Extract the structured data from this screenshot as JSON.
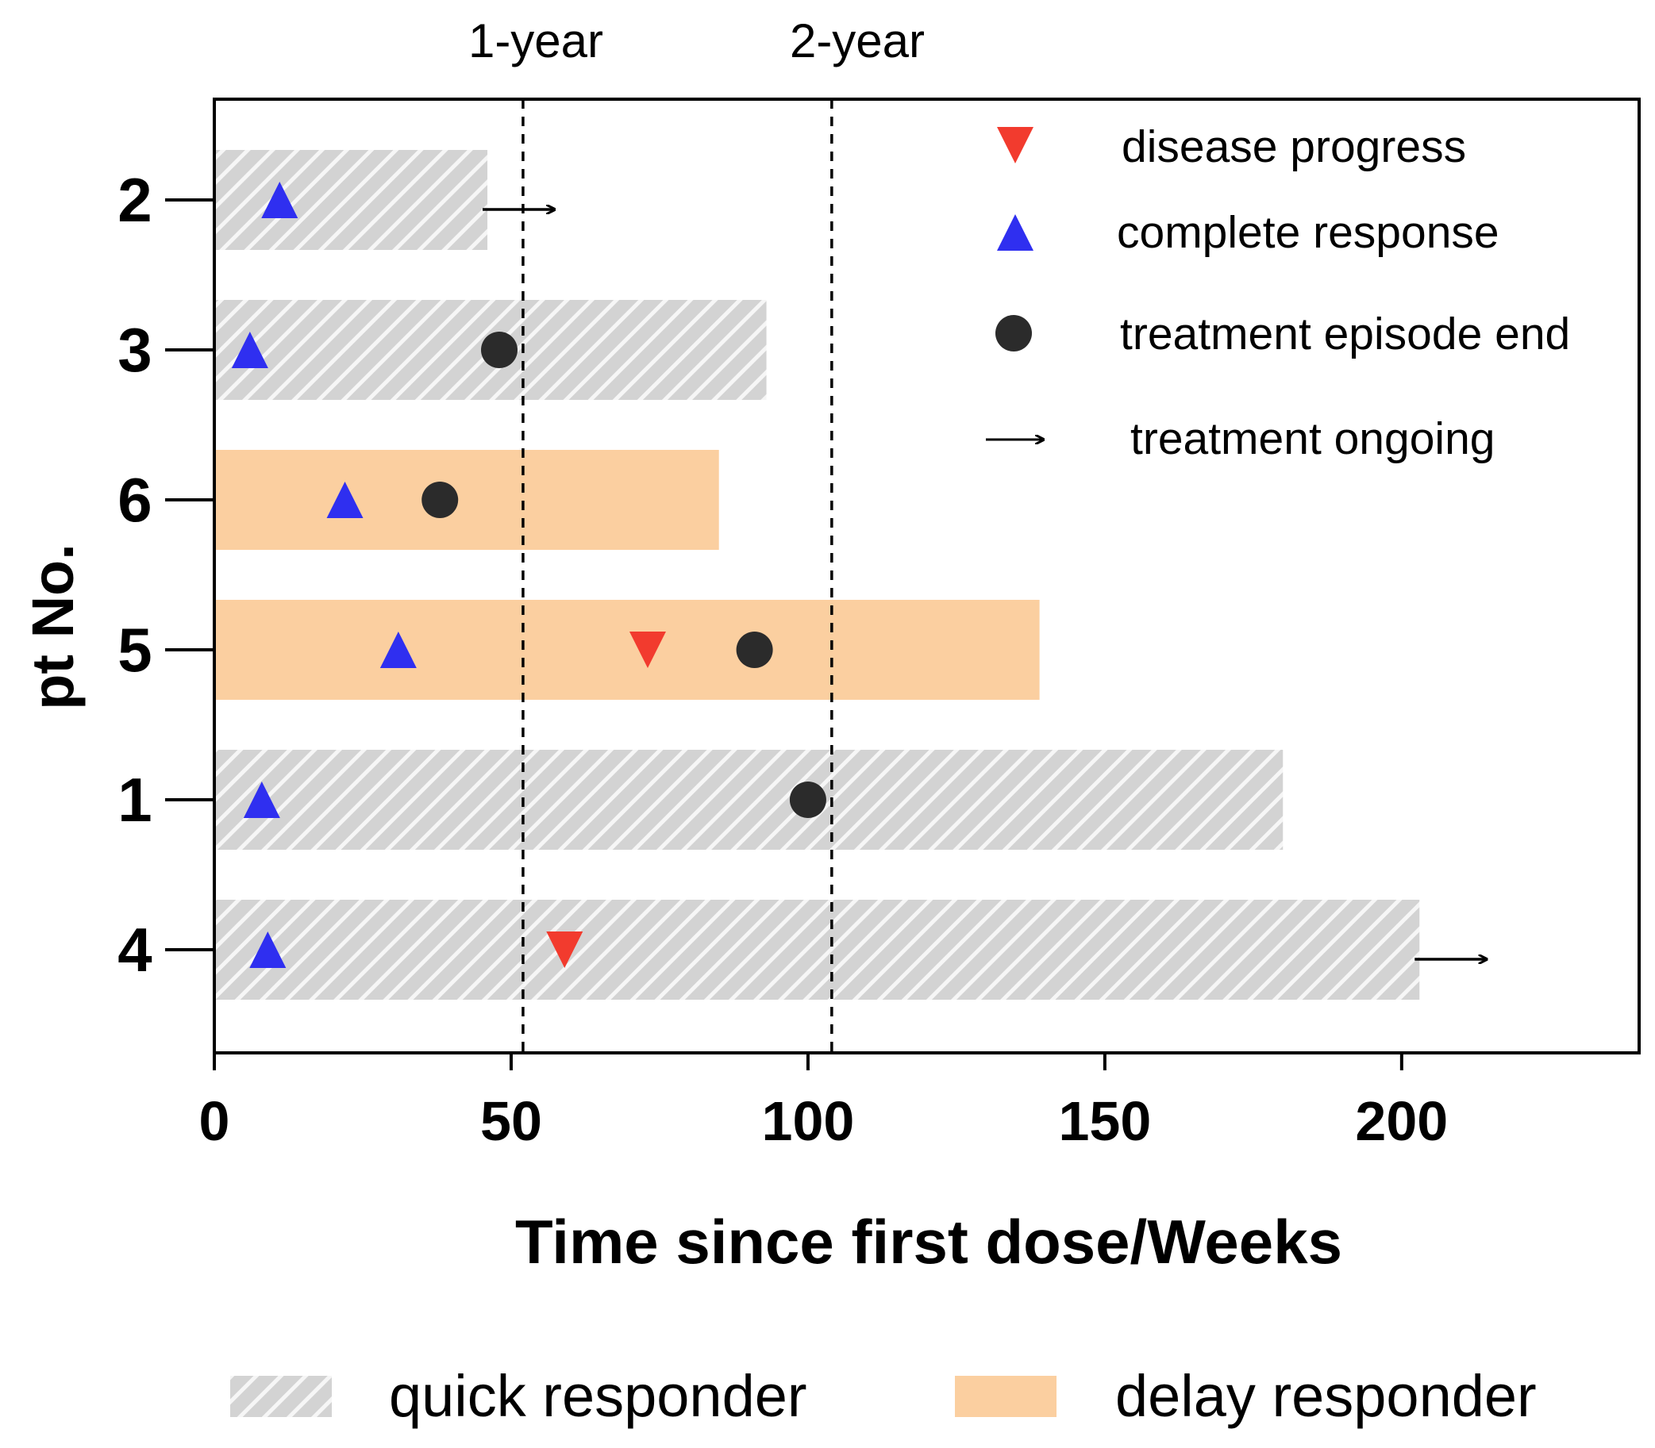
{
  "chart_data": {
    "type": "swimmer",
    "title": "",
    "xlabel": "Time since first dose/Weeks",
    "ylabel": "pt No.",
    "xlim": [
      0,
      240
    ],
    "xticks": [
      0,
      50,
      100,
      150,
      200
    ],
    "xtick_labels": [
      "0",
      "50",
      "100",
      "150",
      "200"
    ],
    "reference_lines": [
      {
        "label": "1-year",
        "x": 52
      },
      {
        "label": "2-year",
        "x": 104
      }
    ],
    "groups": [
      {
        "key": "quick",
        "name": "quick responder",
        "color": "#d3d3d3",
        "pattern": "hatched"
      },
      {
        "key": "delay",
        "name": "delay responder",
        "color": "#fbcfa0",
        "pattern": "solid"
      }
    ],
    "patients": [
      {
        "id": "2",
        "group": "quick",
        "duration": 46,
        "complete_response": 11,
        "disease_progress": null,
        "episode_end": null,
        "ongoing": true
      },
      {
        "id": "3",
        "group": "quick",
        "duration": 93,
        "complete_response": 6,
        "disease_progress": null,
        "episode_end": 48,
        "ongoing": false
      },
      {
        "id": "6",
        "group": "delay",
        "duration": 85,
        "complete_response": 22,
        "disease_progress": null,
        "episode_end": 38,
        "ongoing": false
      },
      {
        "id": "5",
        "group": "delay",
        "duration": 139,
        "complete_response": 31,
        "disease_progress": 73,
        "episode_end": 91,
        "ongoing": false
      },
      {
        "id": "1",
        "group": "quick",
        "duration": 180,
        "complete_response": 8,
        "disease_progress": null,
        "episode_end": 100,
        "ongoing": false
      },
      {
        "id": "4",
        "group": "quick",
        "duration": 203,
        "complete_response": 9,
        "disease_progress": 59,
        "episode_end": null,
        "ongoing": true
      }
    ],
    "marker_legend": [
      {
        "key": "progress",
        "label": "disease progress",
        "color": "#f23b2e"
      },
      {
        "key": "response",
        "label": "complete response",
        "color": "#2f2ff0"
      },
      {
        "key": "end",
        "label": "treatment episode end",
        "color": "#2b2b2b"
      },
      {
        "key": "ongoing",
        "label": "treatment ongoing",
        "color": "#000000"
      }
    ],
    "legend_position": "top-right"
  }
}
